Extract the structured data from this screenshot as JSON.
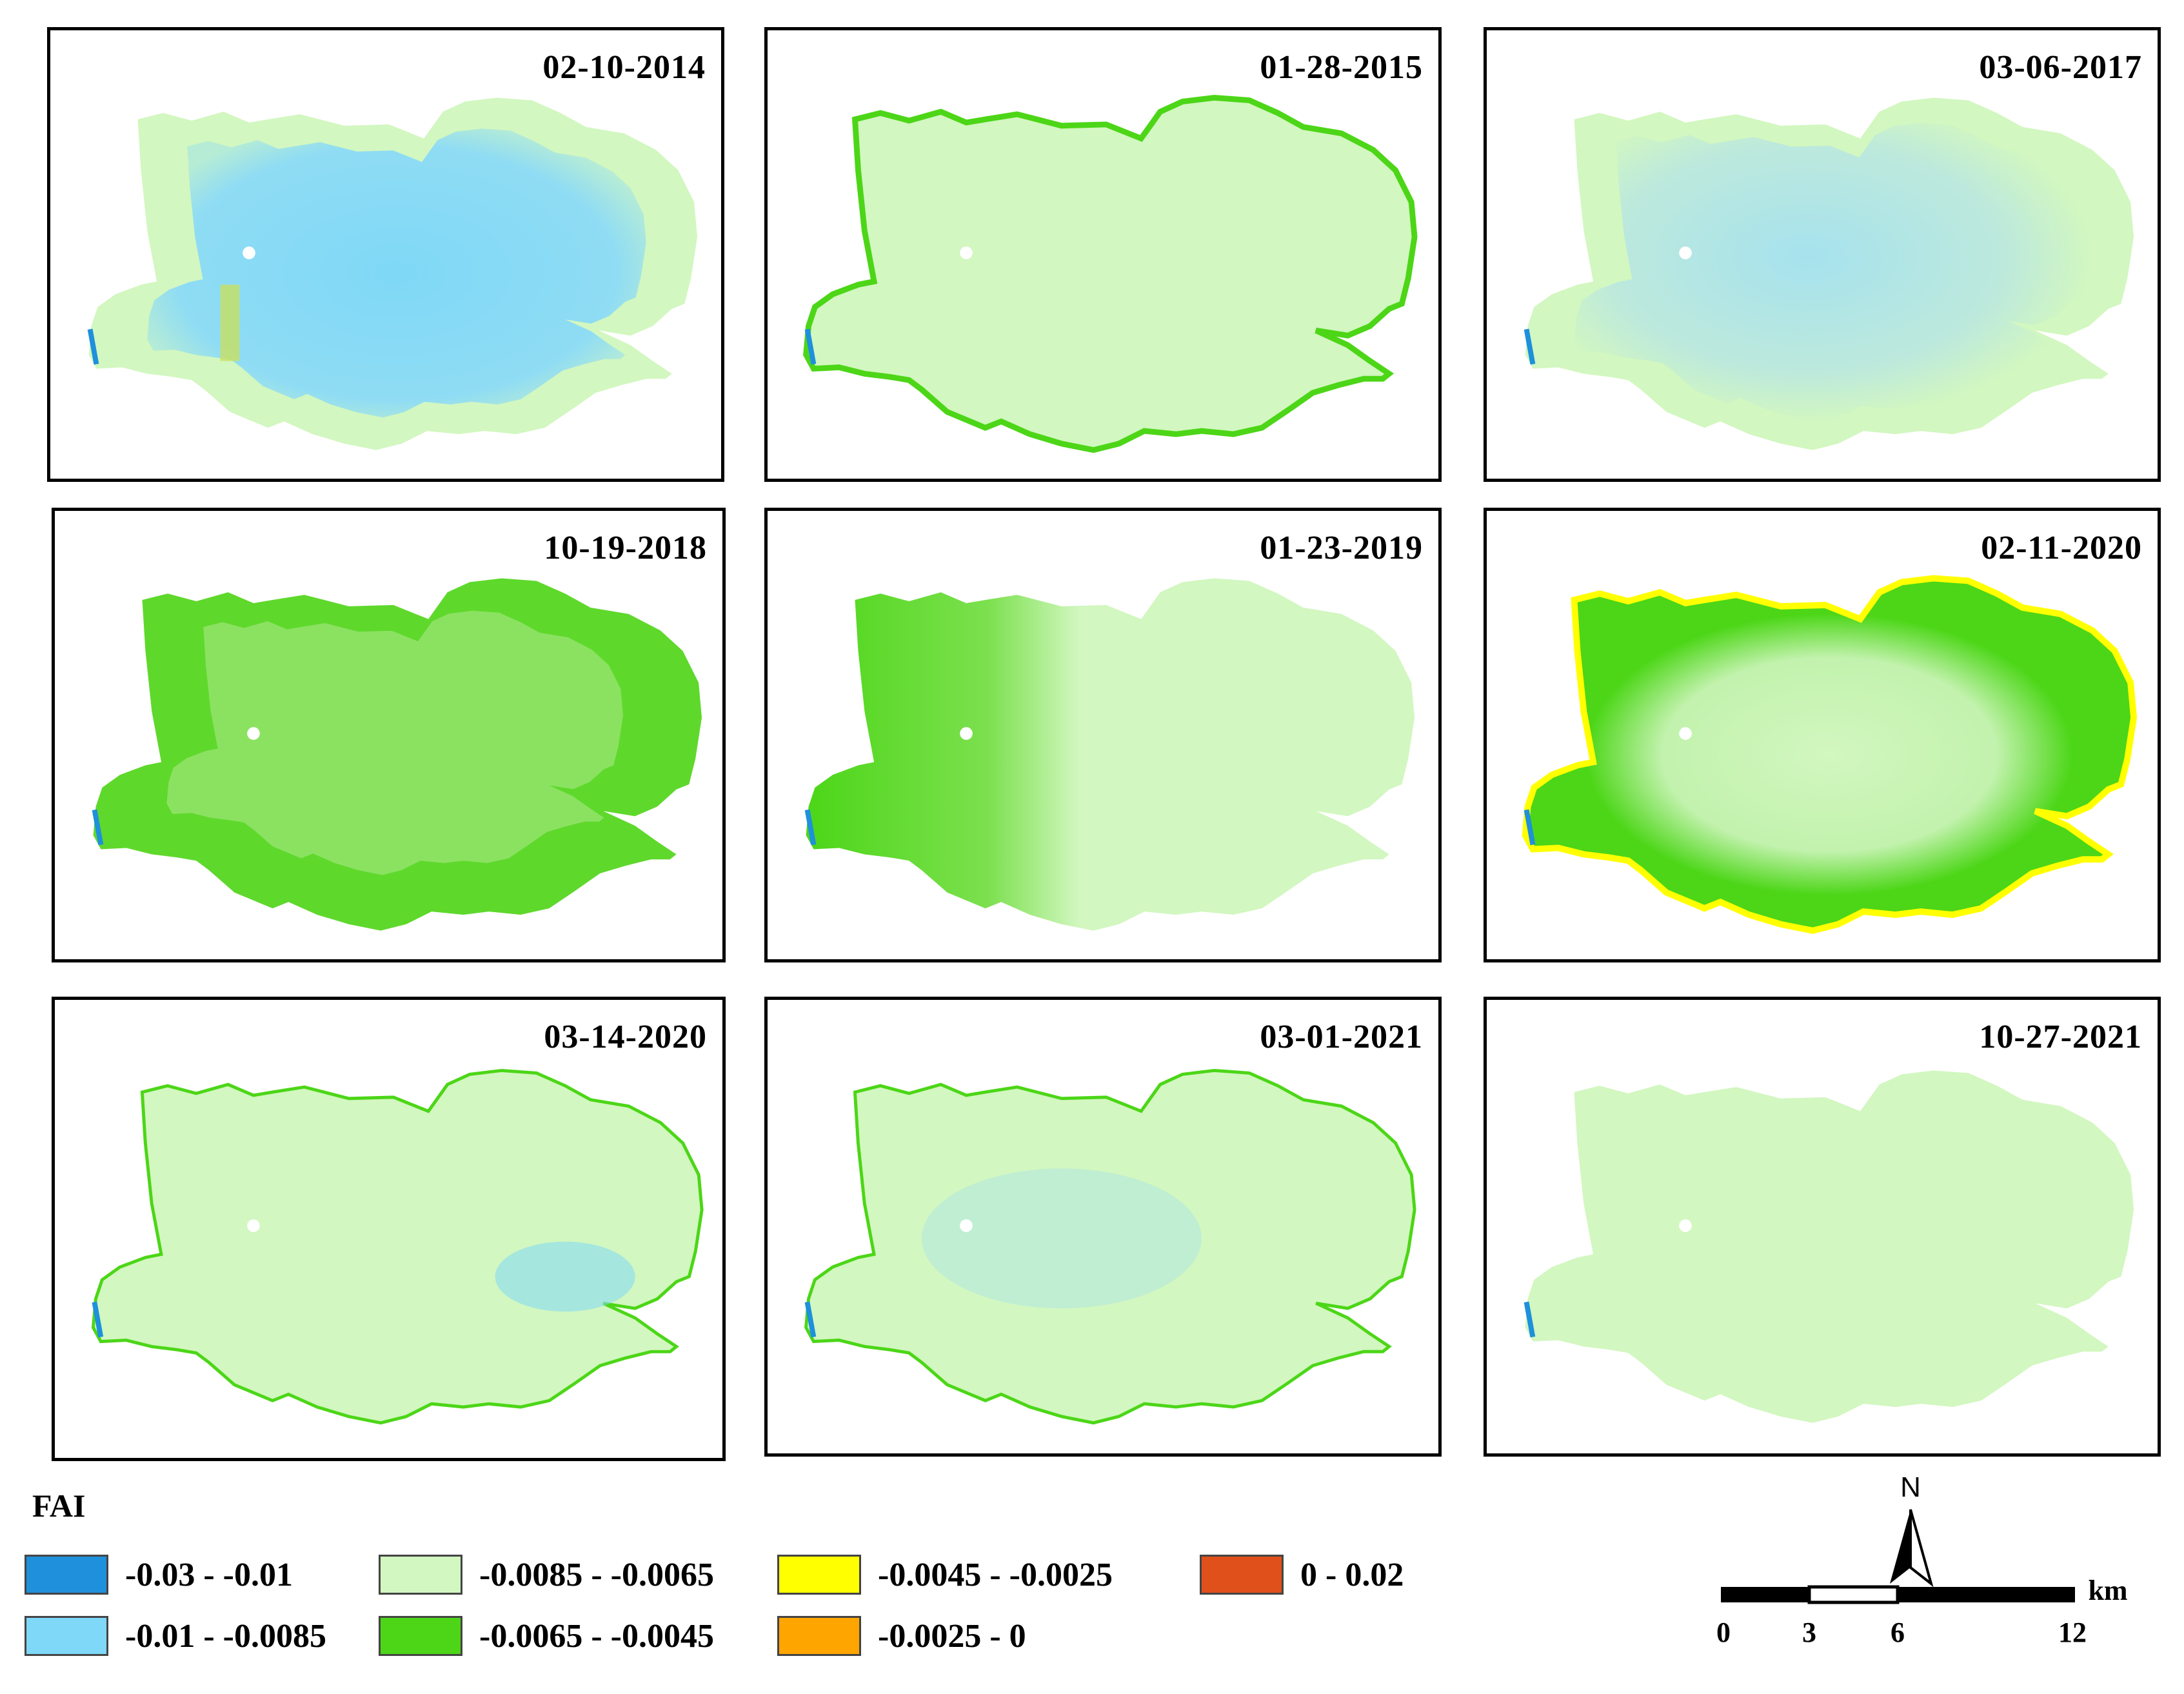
{
  "panels": [
    {
      "date": "02-10-2014"
    },
    {
      "date": "01-28-2015"
    },
    {
      "date": "03-06-2017"
    },
    {
      "date": "10-19-2018"
    },
    {
      "date": "01-23-2019"
    },
    {
      "date": "02-11-2020"
    },
    {
      "date": "03-14-2020"
    },
    {
      "date": "03-01-2021"
    },
    {
      "date": "10-27-2021"
    }
  ],
  "legend": {
    "title": "FAI",
    "classes": [
      {
        "label": "-0.03 - -0.01",
        "color": "#1e90dc"
      },
      {
        "label": "-0.01 - -0.0085",
        "color": "#7fd8f7"
      },
      {
        "label": "-0.0085 - -0.0065",
        "color": "#d2f7c0"
      },
      {
        "label": "-0.0065 - -0.0045",
        "color": "#4cd617"
      },
      {
        "label": "-0.0045 - -0.0025",
        "color": "#ffff00"
      },
      {
        "label": "-0.0025 - 0",
        "color": "#ffa500"
      },
      {
        "label": "0 - 0.02",
        "color": "#e0501a"
      }
    ]
  },
  "scale": {
    "north": "N",
    "unit": "km",
    "ticks": [
      "0",
      "3",
      "6",
      "12"
    ]
  }
}
